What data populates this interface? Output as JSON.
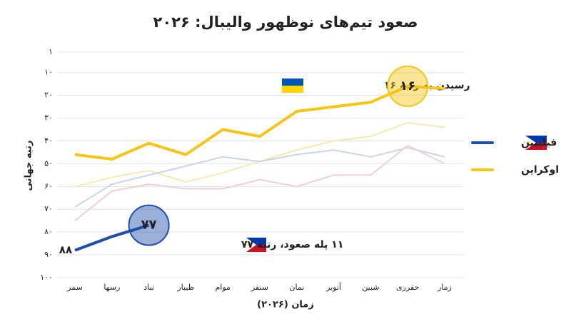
{
  "chart_data": {
    "type": "line",
    "title": "صعود تیم‌های نوظهور والیبال: ۲۰۲۶",
    "x_label": "زمان (۲۰۲۶)",
    "y_label": "رتبه جهانی",
    "categories": [
      "سمر",
      "رسها",
      "نباد",
      "ظیبار",
      "موام",
      "سنقر",
      "نمان",
      "آنوبر",
      "شبین",
      "حقرری",
      "زمار"
    ],
    "ylim": [
      1,
      100
    ],
    "y_inverted": true,
    "yticks": [
      {
        "value": 1,
        "label": "۱"
      },
      {
        "value": 10,
        "label": "۱۰"
      },
      {
        "value": 20,
        "label": "۲۰"
      },
      {
        "value": 30,
        "label": "۳۰"
      },
      {
        "value": 40,
        "label": "۴۰"
      },
      {
        "value": 50,
        "label": "۵۰"
      },
      {
        "value": 60,
        "label": "۶۰"
      },
      {
        "value": 70,
        "label": "۷۰"
      },
      {
        "value": 80,
        "label": "۸۰"
      },
      {
        "value": 90,
        "label": "۹۰"
      },
      {
        "value": 100,
        "label": "۱۰۰"
      }
    ],
    "grid": true,
    "legend": "right",
    "series": [
      {
        "color": "#f6eab0",
        "values": [
          60,
          56,
          53,
          58,
          54,
          49,
          44,
          40,
          38,
          32,
          34
        ]
      },
      {
        "color": "#cdd3ea",
        "values": [
          69,
          59,
          55,
          51,
          47,
          49,
          46,
          44,
          47,
          43,
          47
        ]
      },
      {
        "color": "#f1cfd6",
        "values": [
          75,
          62,
          59,
          61,
          61,
          57,
          60,
          55,
          55,
          42,
          50
        ]
      },
      {
        "name": "فیلیپین",
        "color": "#1f4fa8",
        "values": [
          88,
          82,
          77,
          null,
          null,
          null,
          null,
          null,
          null,
          null,
          null
        ],
        "value_labels": [
          "۸۸",
          null,
          "۷۷",
          null,
          null,
          null,
          null,
          null,
          null,
          null,
          null
        ]
      },
      {
        "name": "اوکراین",
        "color": "#f5c518",
        "values": [
          46,
          48,
          41,
          46,
          35,
          38,
          27,
          25,
          23,
          16,
          17
        ],
        "value_labels": [
          null,
          null,
          null,
          null,
          null,
          null,
          null,
          null,
          null,
          "۱۶",
          null
        ]
      }
    ],
    "annotations": [
      "رسیدن به رتبه ۱۶",
      "۱۱ پله صعود، رتبه ۷۷"
    ]
  }
}
